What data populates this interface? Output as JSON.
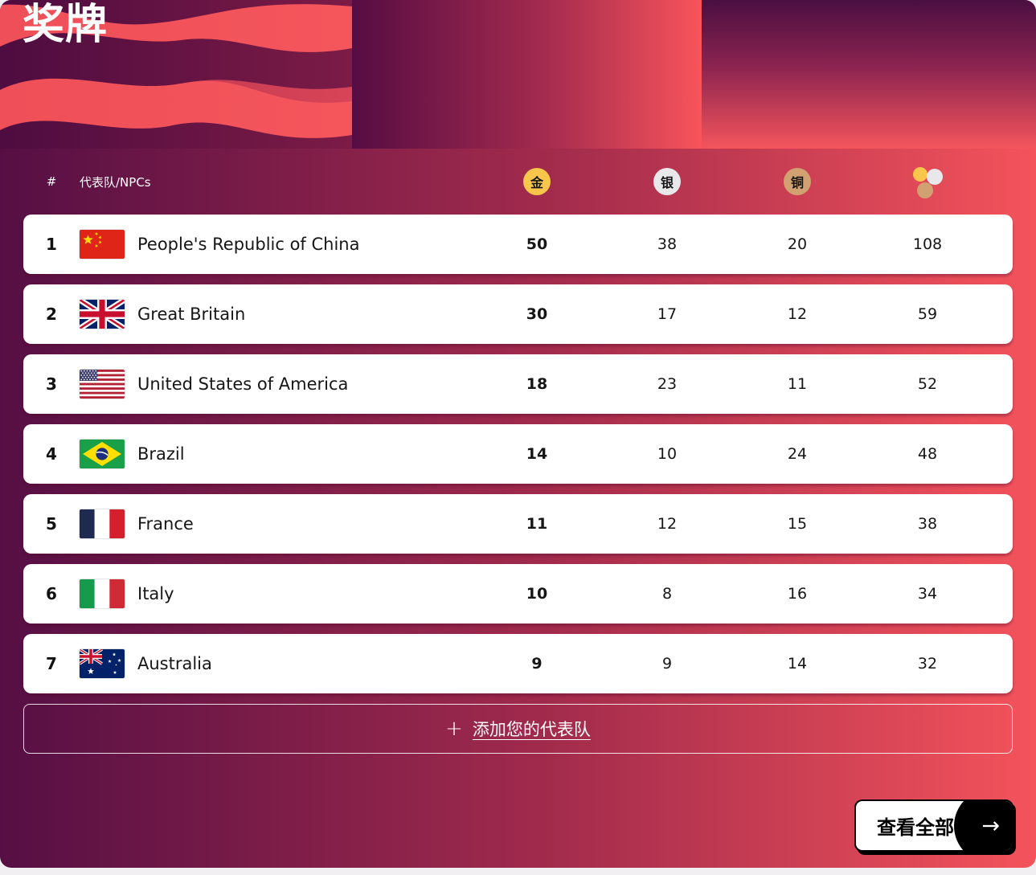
{
  "page": {
    "title": "奖牌"
  },
  "table": {
    "header": {
      "rank": "#",
      "team": "代表队/NPCs",
      "gold_label": "金",
      "silver_label": "银",
      "bronze_label": "铜"
    },
    "rows": [
      {
        "rank": "1",
        "flag": "cn",
        "country": "People's Republic of China",
        "gold": "50",
        "silver": "38",
        "bronze": "20",
        "total": "108"
      },
      {
        "rank": "2",
        "flag": "gb",
        "country": "Great Britain",
        "gold": "30",
        "silver": "17",
        "bronze": "12",
        "total": "59"
      },
      {
        "rank": "3",
        "flag": "us",
        "country": "United States of America",
        "gold": "18",
        "silver": "23",
        "bronze": "11",
        "total": "52"
      },
      {
        "rank": "4",
        "flag": "br",
        "country": "Brazil",
        "gold": "14",
        "silver": "10",
        "bronze": "24",
        "total": "48"
      },
      {
        "rank": "5",
        "flag": "fr",
        "country": "France",
        "gold": "11",
        "silver": "12",
        "bronze": "15",
        "total": "38"
      },
      {
        "rank": "6",
        "flag": "it",
        "country": "Italy",
        "gold": "10",
        "silver": "8",
        "bronze": "16",
        "total": "34"
      },
      {
        "rank": "7",
        "flag": "au",
        "country": "Australia",
        "gold": "9",
        "silver": "9",
        "bronze": "14",
        "total": "32"
      }
    ]
  },
  "actions": {
    "add_team": {
      "plus": "+",
      "label": "添加您的代表队"
    },
    "view_all": {
      "label": "查看全部",
      "arrow": "→"
    }
  },
  "colors": {
    "gold": "#f7c64a",
    "silver": "#e8e7ea",
    "bronze": "#d2a171",
    "gradient_left": "#560f44",
    "gradient_right": "#f4535b",
    "card": "#ffffff"
  }
}
